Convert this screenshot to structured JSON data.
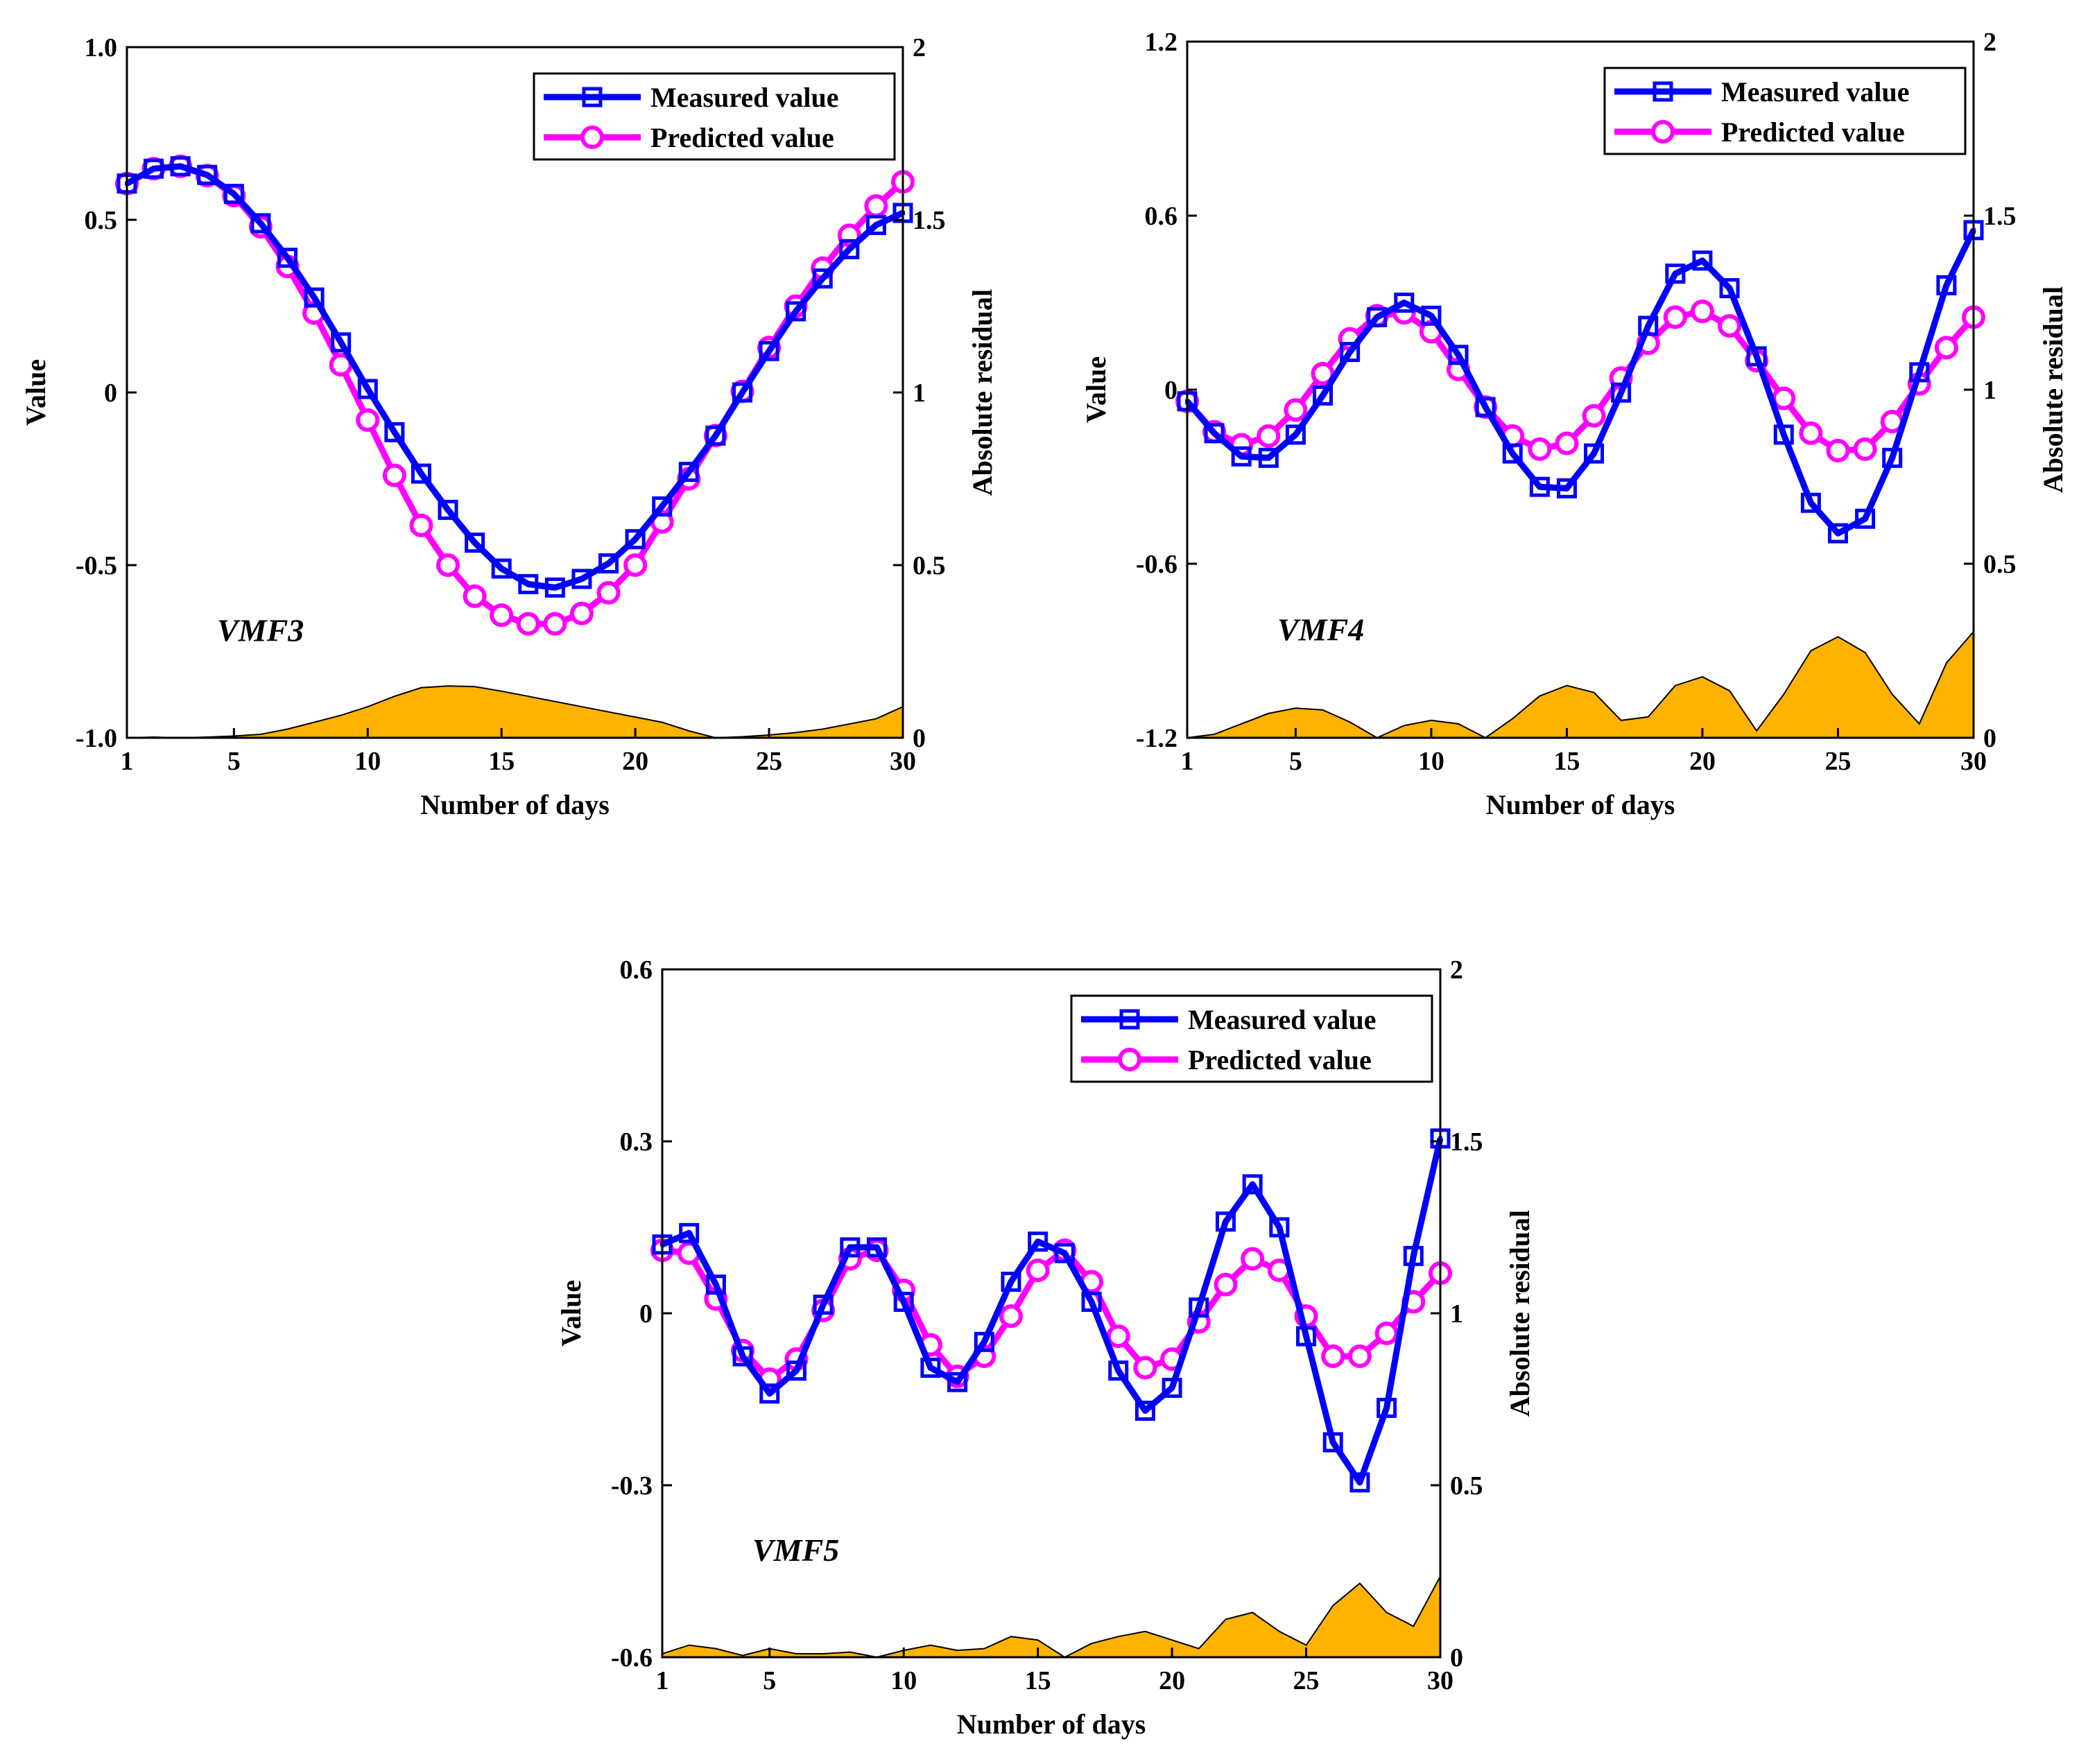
{
  "chart_data": [
    {
      "type": "line",
      "panel_label": "VMF3",
      "xlabel": "Number of days",
      "ylabel": "Value",
      "y2label": "Absolute residual",
      "xlim": [
        1,
        30
      ],
      "xticks": [
        1,
        5,
        10,
        15,
        20,
        25,
        30
      ],
      "ylim": [
        -1.0,
        1.0
      ],
      "yticks": [
        -1.0,
        -0.5,
        0,
        0.5,
        1.0
      ],
      "ytick_labels": [
        "-1.0",
        "-0.5",
        "0",
        "0.5",
        "1.0"
      ],
      "y2lim": [
        0,
        2
      ],
      "y2ticks": [
        0,
        0.5,
        1,
        1.5,
        2
      ],
      "y2tick_labels": [
        "0",
        "0.5",
        "1",
        "1.5",
        "2"
      ],
      "legend_position": "top-right",
      "x": [
        1,
        2,
        3,
        4,
        5,
        6,
        7,
        8,
        9,
        10,
        11,
        12,
        13,
        14,
        15,
        16,
        17,
        18,
        19,
        20,
        21,
        22,
        23,
        24,
        25,
        26,
        27,
        28,
        29,
        30
      ],
      "series": [
        {
          "name": "Measured value",
          "color": "#0000ff",
          "marker": "square",
          "values": [
            0.605,
            0.648,
            0.655,
            0.63,
            0.575,
            0.49,
            0.39,
            0.275,
            0.145,
            0.01,
            -0.115,
            -0.235,
            -0.34,
            -0.435,
            -0.51,
            -0.555,
            -0.565,
            -0.54,
            -0.495,
            -0.425,
            -0.33,
            -0.23,
            -0.125,
            0.0,
            0.12,
            0.235,
            0.33,
            0.415,
            0.485,
            0.52
          ]
        },
        {
          "name": "Predicted value",
          "color": "#ff00ff",
          "marker": "circle",
          "values": [
            0.605,
            0.648,
            0.655,
            0.628,
            0.57,
            0.48,
            0.365,
            0.23,
            0.08,
            -0.08,
            -0.24,
            -0.385,
            -0.5,
            -0.59,
            -0.645,
            -0.67,
            -0.67,
            -0.64,
            -0.58,
            -0.5,
            -0.375,
            -0.25,
            -0.125,
            0.003,
            0.13,
            0.25,
            0.36,
            0.455,
            0.54,
            0.61
          ]
        }
      ],
      "residual": {
        "color": "#ffb300",
        "values": [
          0.0,
          0.002,
          0.0,
          0.002,
          0.005,
          0.01,
          0.025,
          0.045,
          0.065,
          0.09,
          0.12,
          0.145,
          0.15,
          0.148,
          0.135,
          0.12,
          0.105,
          0.09,
          0.075,
          0.06,
          0.045,
          0.02,
          0.0,
          0.003,
          0.008,
          0.015,
          0.025,
          0.04,
          0.055,
          0.09
        ]
      }
    },
    {
      "type": "line",
      "panel_label": "VMF4",
      "xlabel": "Number of days",
      "ylabel": "Value",
      "y2label": "Absolute residual",
      "xlim": [
        1,
        30
      ],
      "xticks": [
        1,
        5,
        10,
        15,
        20,
        25,
        30
      ],
      "ylim": [
        -1.2,
        1.2
      ],
      "yticks": [
        -1.2,
        -0.6,
        0,
        0.6,
        1.2
      ],
      "ytick_labels": [
        "-1.2",
        "-0.6",
        "0",
        "0.6",
        "1.2"
      ],
      "y2lim": [
        0,
        2
      ],
      "y2ticks": [
        0,
        0.5,
        1,
        1.5,
        2
      ],
      "y2tick_labels": [
        "0",
        "0.5",
        "1",
        "1.5",
        "2"
      ],
      "legend_position": "top-right",
      "x": [
        1,
        2,
        3,
        4,
        5,
        6,
        7,
        8,
        9,
        10,
        11,
        12,
        13,
        14,
        15,
        16,
        17,
        18,
        19,
        20,
        21,
        22,
        23,
        24,
        25,
        26,
        27,
        28,
        29,
        30
      ],
      "series": [
        {
          "name": "Measured value",
          "color": "#0000ff",
          "marker": "square",
          "values": [
            -0.04,
            -0.15,
            -0.23,
            -0.235,
            -0.155,
            -0.02,
            0.13,
            0.25,
            0.3,
            0.255,
            0.12,
            -0.06,
            -0.22,
            -0.335,
            -0.34,
            -0.22,
            -0.01,
            0.22,
            0.4,
            0.445,
            0.35,
            0.115,
            -0.155,
            -0.39,
            -0.495,
            -0.445,
            -0.235,
            0.06,
            0.36,
            0.55
          ]
        },
        {
          "name": "Predicted value",
          "color": "#ff00ff",
          "marker": "circle",
          "values": [
            -0.04,
            -0.145,
            -0.19,
            -0.16,
            -0.07,
            0.055,
            0.175,
            0.255,
            0.265,
            0.2,
            0.07,
            -0.06,
            -0.16,
            -0.205,
            -0.185,
            -0.09,
            0.04,
            0.16,
            0.25,
            0.27,
            0.22,
            0.1,
            -0.03,
            -0.15,
            -0.21,
            -0.205,
            -0.11,
            0.02,
            0.145,
            0.25
          ]
        }
      ],
      "residual": {
        "color": "#ffb300",
        "values": [
          0.0,
          0.01,
          0.04,
          0.07,
          0.085,
          0.08,
          0.045,
          0.0,
          0.035,
          0.05,
          0.04,
          0.0,
          0.055,
          0.12,
          0.15,
          0.13,
          0.05,
          0.06,
          0.15,
          0.175,
          0.135,
          0.02,
          0.125,
          0.25,
          0.29,
          0.245,
          0.125,
          0.04,
          0.215,
          0.305
        ]
      }
    },
    {
      "type": "line",
      "panel_label": "VMF5",
      "xlabel": "Number of days",
      "ylabel": "Value",
      "y2label": "Absolute residual",
      "xlim": [
        1,
        30
      ],
      "xticks": [
        1,
        5,
        10,
        15,
        20,
        25,
        30
      ],
      "ylim": [
        -0.6,
        0.6
      ],
      "yticks": [
        -0.6,
        -0.3,
        0,
        0.3,
        0.6
      ],
      "ytick_labels": [
        "-0.6",
        "-0.3",
        "0",
        "0.3",
        "0.6"
      ],
      "y2lim": [
        0,
        2
      ],
      "y2ticks": [
        0,
        0.5,
        1,
        1.5,
        2
      ],
      "y2tick_labels": [
        "0",
        "0.5",
        "1",
        "1.5",
        "2"
      ],
      "legend_position": "top-right",
      "x": [
        1,
        2,
        3,
        4,
        5,
        6,
        7,
        8,
        9,
        10,
        11,
        12,
        13,
        14,
        15,
        16,
        17,
        18,
        19,
        20,
        21,
        22,
        23,
        24,
        25,
        26,
        27,
        28,
        29,
        30
      ],
      "series": [
        {
          "name": "Measured value",
          "color": "#0000ff",
          "marker": "square",
          "values": [
            0.12,
            0.14,
            0.05,
            -0.075,
            -0.14,
            -0.1,
            0.015,
            0.115,
            0.115,
            0.02,
            -0.095,
            -0.12,
            -0.05,
            0.055,
            0.125,
            0.105,
            0.02,
            -0.1,
            -0.17,
            -0.13,
            0.01,
            0.16,
            0.225,
            0.15,
            -0.04,
            -0.225,
            -0.295,
            -0.165,
            0.1,
            0.305
          ]
        },
        {
          "name": "Predicted value",
          "color": "#ff00ff",
          "marker": "circle",
          "values": [
            0.11,
            0.105,
            0.025,
            -0.065,
            -0.115,
            -0.08,
            0.005,
            0.095,
            0.11,
            0.04,
            -0.055,
            -0.11,
            -0.075,
            -0.005,
            0.075,
            0.11,
            0.055,
            -0.04,
            -0.095,
            -0.08,
            -0.015,
            0.05,
            0.095,
            0.075,
            -0.005,
            -0.075,
            -0.075,
            -0.035,
            0.02,
            0.07
          ]
        }
      ],
      "residual": {
        "color": "#ffb300",
        "values": [
          0.01,
          0.035,
          0.025,
          0.005,
          0.025,
          0.01,
          0.01,
          0.015,
          0.0,
          0.02,
          0.035,
          0.02,
          0.025,
          0.06,
          0.05,
          0.0,
          0.04,
          0.06,
          0.075,
          0.05,
          0.025,
          0.11,
          0.13,
          0.075,
          0.035,
          0.15,
          0.215,
          0.13,
          0.09,
          0.235
        ]
      }
    }
  ]
}
